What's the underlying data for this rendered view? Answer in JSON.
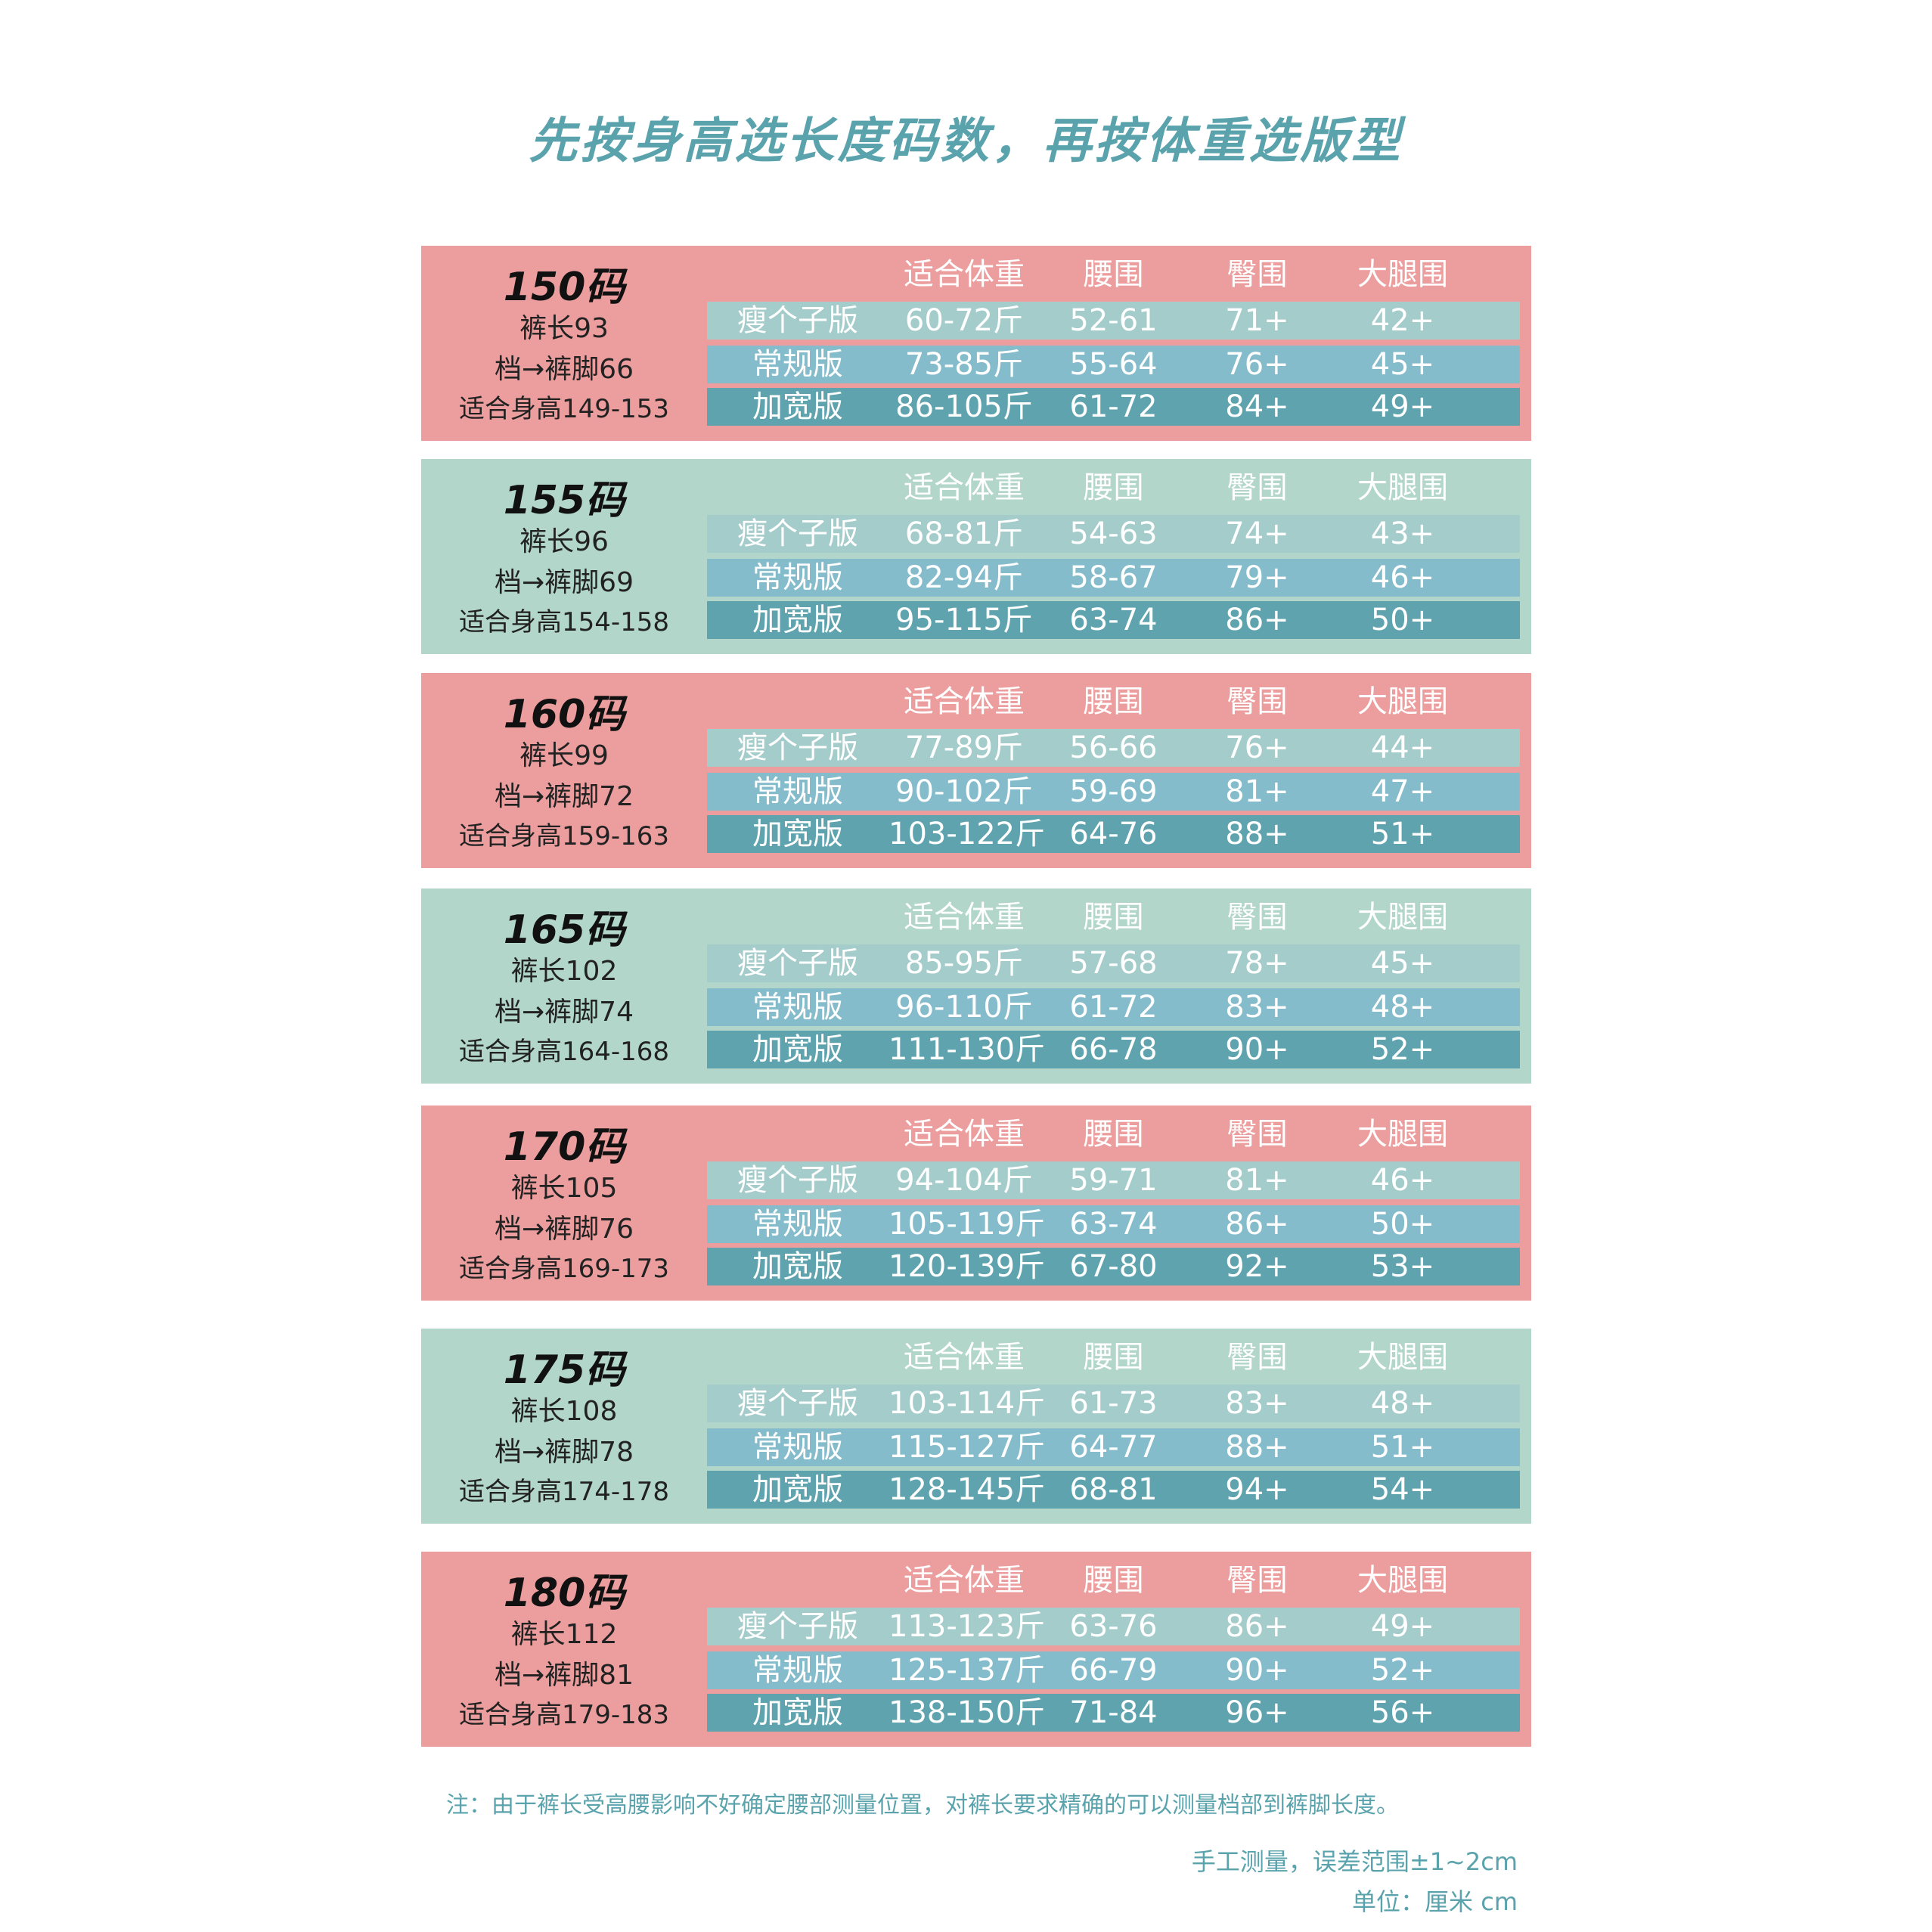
{
  "title": "先按身高选长度码数，再按体重选版型",
  "headers": [
    "适合体重",
    "腰围",
    "臀围",
    "大腿围"
  ],
  "sizes": [
    {
      "size": "150码",
      "length": "裤长93",
      "inseam": "档→裤脚66",
      "height": "适合身高149-153",
      "rows": [
        [
          "瘦个子版",
          "60-72斤",
          "52-61",
          "71+",
          "42+"
        ],
        [
          "常规版",
          "73-85斤",
          "55-64",
          "76+",
          "45+"
        ],
        [
          "加宽版",
          "86-105斤",
          "61-72",
          "84+",
          "49+"
        ]
      ]
    },
    {
      "size": "155码",
      "length": "裤长96",
      "inseam": "档→裤脚69",
      "height": "适合身高154-158",
      "rows": [
        [
          "瘦个子版",
          "68-81斤",
          "54-63",
          "74+",
          "43+"
        ],
        [
          "常规版",
          "82-94斤",
          "58-67",
          "79+",
          "46+"
        ],
        [
          "加宽版",
          "95-115斤",
          "63-74",
          "86+",
          "50+"
        ]
      ]
    },
    {
      "size": "160码",
      "length": "裤长99",
      "inseam": "档→裤脚72",
      "height": "适合身高159-163",
      "rows": [
        [
          "瘦个子版",
          "77-89斤",
          "56-66",
          "76+",
          "44+"
        ],
        [
          "常规版",
          "90-102斤",
          "59-69",
          "81+",
          "47+"
        ],
        [
          "加宽版",
          "103-122斤",
          "64-76",
          "88+",
          "51+"
        ]
      ]
    },
    {
      "size": "165码",
      "length": "裤长102",
      "inseam": "档→裤脚74",
      "height": "适合身高164-168",
      "rows": [
        [
          "瘦个子版",
          "85-95斤",
          "57-68",
          "78+",
          "45+"
        ],
        [
          "常规版",
          "96-110斤",
          "61-72",
          "83+",
          "48+"
        ],
        [
          "加宽版",
          "111-130斤",
          "66-78",
          "90+",
          "52+"
        ]
      ]
    },
    {
      "size": "170码",
      "length": "裤长105",
      "inseam": "档→裤脚76",
      "height": "适合身高169-173",
      "rows": [
        [
          "瘦个子版",
          "94-104斤",
          "59-71",
          "81+",
          "46+"
        ],
        [
          "常规版",
          "105-119斤",
          "63-74",
          "86+",
          "50+"
        ],
        [
          "加宽版",
          "120-139斤",
          "67-80",
          "92+",
          "53+"
        ]
      ]
    },
    {
      "size": "175码",
      "length": "裤长108",
      "inseam": "档→裤脚78",
      "height": "适合身高174-178",
      "rows": [
        [
          "瘦个子版",
          "103-114斤",
          "61-73",
          "83+",
          "48+"
        ],
        [
          "常规版",
          "115-127斤",
          "64-77",
          "88+",
          "51+"
        ],
        [
          "加宽版",
          "128-145斤",
          "68-81",
          "94+",
          "54+"
        ]
      ]
    },
    {
      "size": "180码",
      "length": "裤长112",
      "inseam": "档→裤脚81",
      "height": "适合身高179-183",
      "rows": [
        [
          "瘦个子版",
          "113-123斤",
          "63-76",
          "86+",
          "49+"
        ],
        [
          "常规版",
          "125-137斤",
          "66-79",
          "90+",
          "52+"
        ],
        [
          "加宽版",
          "138-150斤",
          "71-84",
          "96+",
          "56+"
        ]
      ]
    }
  ],
  "footnote": "注：由于裤长受高腰影响不好确定腰部测量位置，对裤长要求精确的可以测量档部到裤脚长度。",
  "measure_note": "手工测量，误差范围±1~2cm",
  "unit_note": "单位：厘米 cm",
  "colors": {
    "title": "#5aa3ad",
    "pink_block": "#ec9e9e",
    "mint_block": "#b2d6ca",
    "row_light": "#a4cccb",
    "row_mid": "#85bccb",
    "row_dark": "#5fa3ae"
  }
}
